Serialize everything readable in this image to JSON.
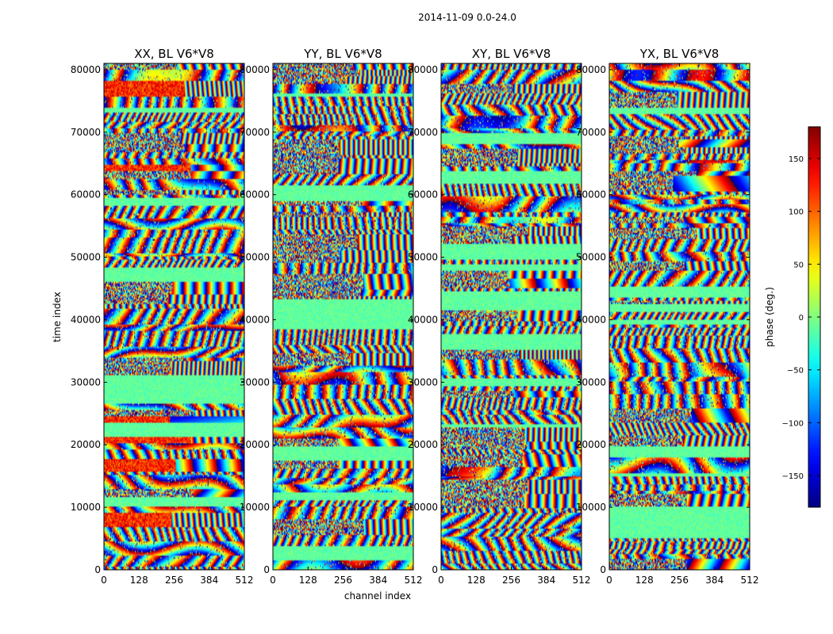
{
  "chart_data": {
    "type": "heatmap",
    "title": "2014-11-09 0.0-24.0",
    "xlabel": "channel index",
    "ylabel": "time index",
    "xlim": [
      0,
      512
    ],
    "ylim": [
      0,
      81000
    ],
    "xticks": [
      0,
      128,
      256,
      384,
      512
    ],
    "yticks": [
      0,
      10000,
      20000,
      30000,
      40000,
      50000,
      60000,
      70000,
      80000
    ],
    "panels": [
      {
        "title": "XX, BL V6*V8",
        "seed": 11,
        "redbias": true
      },
      {
        "title": "YY, BL V6*V8",
        "seed": 23,
        "redbias": false
      },
      {
        "title": "XY, BL V6*V8",
        "seed": 37,
        "redbias": false
      },
      {
        "title": "YX, BL V6*V8",
        "seed": 51,
        "redbias": false
      }
    ],
    "colorbar": {
      "label": "phase (deg.)",
      "range": [
        -180,
        180
      ],
      "ticks": [
        150,
        100,
        50,
        0,
        -50,
        -100,
        -150
      ],
      "tick_labels": [
        "150",
        "100",
        "50",
        "0",
        "−50",
        "−100",
        "−150"
      ],
      "colormap": "jet"
    }
  }
}
